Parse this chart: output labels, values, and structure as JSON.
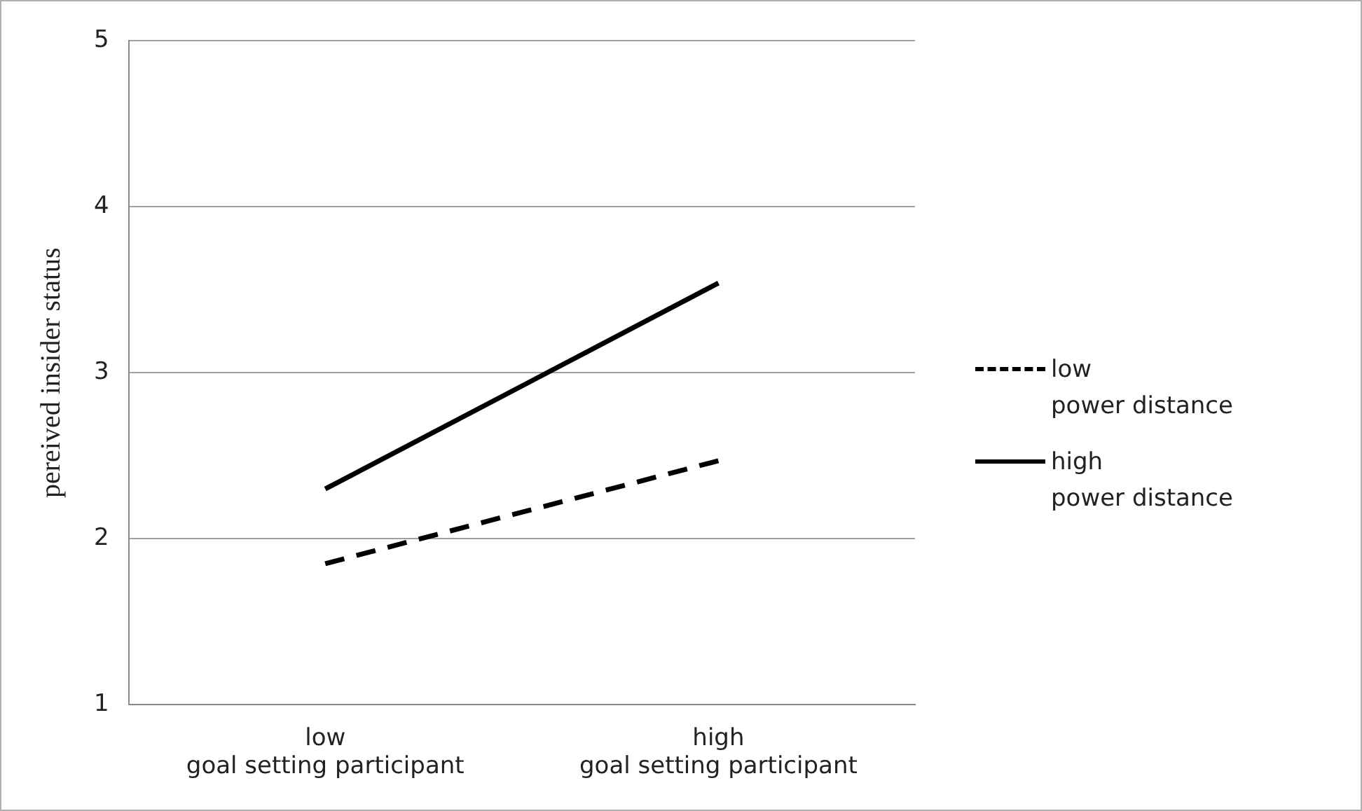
{
  "chart_data": {
    "type": "line",
    "ylabel": "pereived insider status",
    "categories": [
      "low\ngoal setting participant",
      "high\ngoal setting participant"
    ],
    "series": [
      {
        "name": "low\npower distance",
        "color": "#000000",
        "values": [
          1.85,
          2.47
        ],
        "line_style": "dashed"
      },
      {
        "name": "high\npower distance",
        "color": "#000000",
        "values": [
          2.3,
          3.54
        ],
        "line_style": "solid"
      }
    ],
    "ylim": [
      1,
      5
    ],
    "yticks": [
      1,
      2,
      3,
      4,
      5
    ],
    "grid": "y",
    "legend": "right",
    "marker": "none"
  }
}
